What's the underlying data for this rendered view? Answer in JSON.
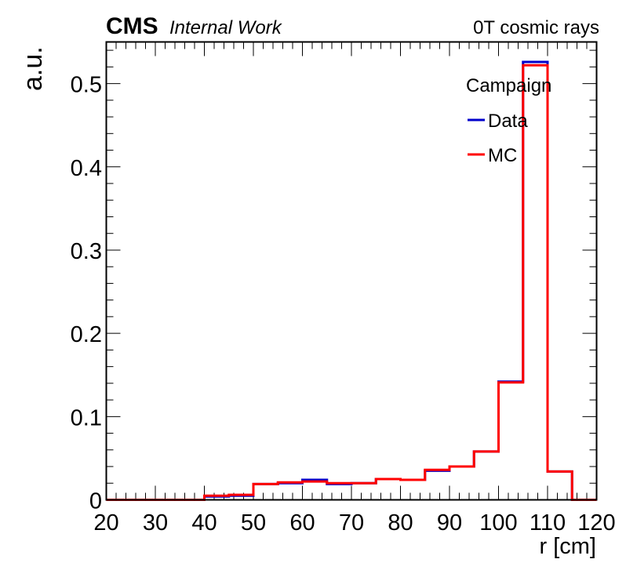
{
  "header": {
    "experiment": "CMS",
    "status": "Internal Work",
    "condition": "0T cosmic rays"
  },
  "chart_data": {
    "type": "histogram-step",
    "xlabel": "r [cm]",
    "ylabel": "a.u.",
    "xlim": [
      20,
      120
    ],
    "ylim": [
      0,
      0.55
    ],
    "x_ticks": [
      20,
      30,
      40,
      50,
      60,
      70,
      80,
      90,
      100,
      110,
      120
    ],
    "y_ticks": [
      0,
      0.1,
      0.2,
      0.3,
      0.4,
      0.5
    ],
    "y_tick_labels": [
      "0",
      "0.1",
      "0.2",
      "0.3",
      "0.4",
      "0.5"
    ],
    "bin_edges": [
      20,
      25,
      30,
      35,
      40,
      45,
      50,
      55,
      60,
      65,
      70,
      75,
      80,
      85,
      90,
      95,
      100,
      105,
      110,
      115,
      120
    ],
    "legend": {
      "title": "Campaign",
      "position": "top-right"
    },
    "series": [
      {
        "name": "Data",
        "color": "#0000cc",
        "values": [
          0,
          0,
          0,
          0,
          0.004,
          0.005,
          0.019,
          0.02,
          0.024,
          0.019,
          0.02,
          0.025,
          0.024,
          0.035,
          0.04,
          0.058,
          0.142,
          0.526,
          0.034,
          0
        ]
      },
      {
        "name": "MC",
        "color": "#ff0000",
        "values": [
          0,
          0,
          0,
          0,
          0.005,
          0.006,
          0.019,
          0.021,
          0.022,
          0.02,
          0.02,
          0.025,
          0.024,
          0.036,
          0.04,
          0.058,
          0.141,
          0.522,
          0.034,
          0
        ]
      }
    ]
  }
}
